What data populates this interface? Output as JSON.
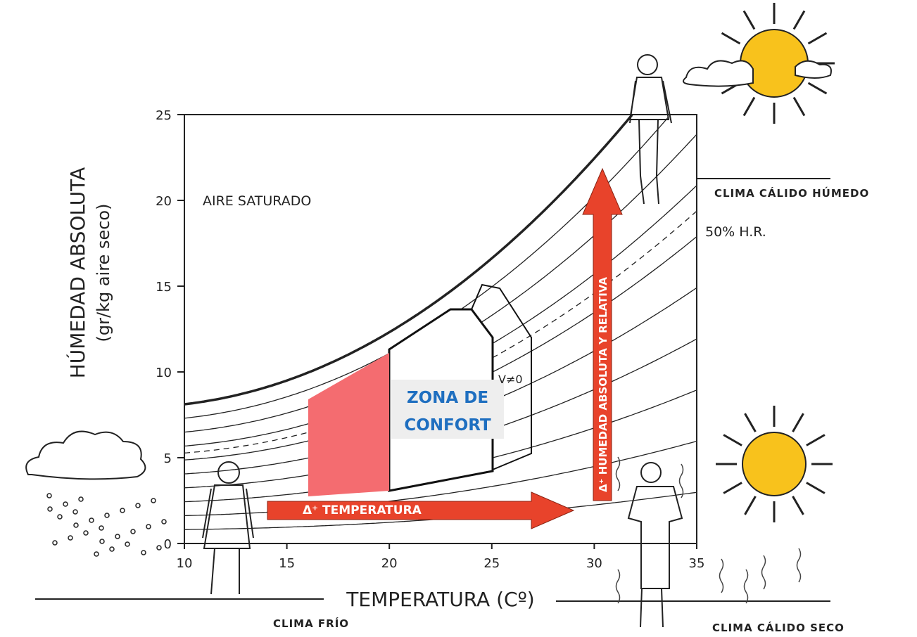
{
  "axes": {
    "x": {
      "title": "TEMPERATURA (Cº)",
      "lim": [
        10,
        35
      ],
      "ticks": [
        10,
        15,
        20,
        25,
        30,
        35
      ]
    },
    "y": {
      "title": "HÚMEDAD ABSOLUTA",
      "subtitle": "(gr/kg aire seco)",
      "lim": [
        0,
        25
      ],
      "ticks": [
        0,
        5,
        10,
        15,
        20,
        25
      ]
    }
  },
  "labels": {
    "saturated": "AIRE SATURADO",
    "rh50": "50% H.R.",
    "air_speed": "V≠0",
    "comfort_zone": [
      "ZONA DE",
      "CONFORT"
    ],
    "temp_arrow": "Δ⁺ TEMPERATURA",
    "humidity_arrow": "Δ⁺ HUMEDAD ABSOLUTA Y RELATIVA"
  },
  "climates": {
    "hot_humid": "CLIMA CÁLIDO HÚMEDO",
    "cold": "CLIMA FRÍO",
    "hot_dry": "CLIMA CÁLIDO SECO"
  }
}
